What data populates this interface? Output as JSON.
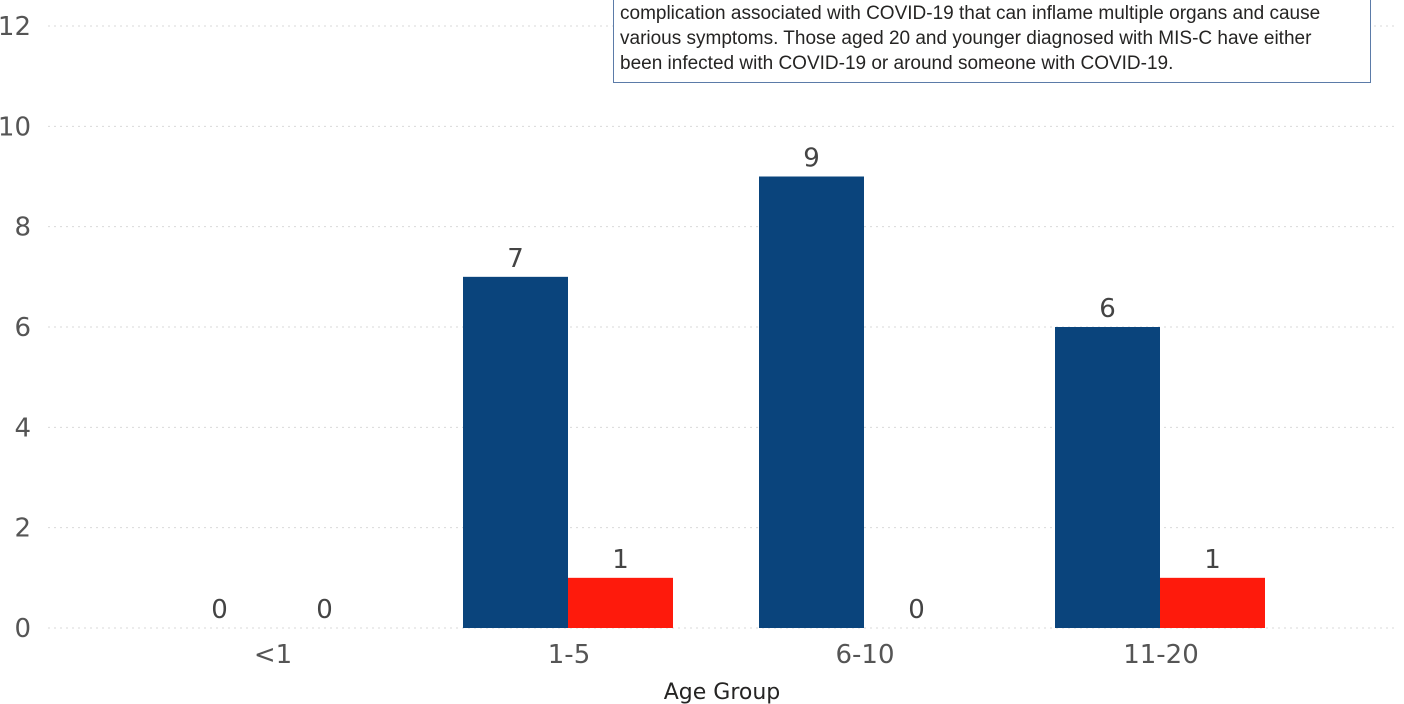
{
  "note": {
    "lines": [
      "complication associated with COVID-19 that can inflame multiple organs and cause",
      "various symptoms. Those aged 20 and younger diagnosed with MIS-C have either",
      "been infected with COVID-19 or around someone with COVID-19."
    ]
  },
  "colors": {
    "series1": "#0a447c",
    "series2": "#fe1a0c",
    "grid": "#d9d9d9",
    "text": "#555555"
  },
  "chart_data": {
    "type": "bar",
    "title": "",
    "xlabel": "Age Group",
    "ylabel": "",
    "categories": [
      "<1",
      "1-5",
      "6-10",
      "11-20"
    ],
    "series": [
      {
        "values": [
          0,
          7,
          9,
          6
        ],
        "color": "#0a447c"
      },
      {
        "values": [
          0,
          1,
          0,
          1
        ],
        "color": "#fe1a0c"
      }
    ],
    "yticks": [
      "0",
      "2",
      "4",
      "6",
      "8",
      "10",
      "12"
    ],
    "ylim": [
      0,
      12
    ],
    "grid": true,
    "legend": "none"
  }
}
